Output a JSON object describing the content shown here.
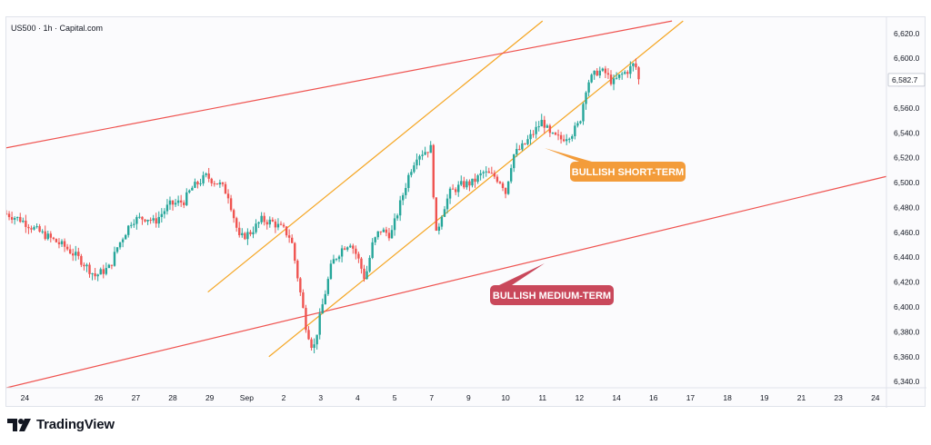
{
  "header": {
    "symbol": "US500 · 1h · Capital.com"
  },
  "brand": {
    "name": "TradingView",
    "logo_icon": "tradingview-logo-icon"
  },
  "colors": {
    "up": "#26a69a",
    "down": "#ef5350",
    "short_term_channel": "#f5a623",
    "medium_term_channel": "#ef5350",
    "short_term_callout": "#f39c3a",
    "medium_term_callout": "#c9485b"
  },
  "annotations": {
    "short_term": "BULLISH SHORT-TERM",
    "medium_term": "BULLISH MEDIUM-TERM"
  },
  "chart_data": {
    "type": "candlestick",
    "title": "US500 · 1h · Capital.com",
    "y_ticks": [
      6620,
      6600,
      6580,
      6560,
      6540,
      6520,
      6500,
      6480,
      6460,
      6440,
      6420,
      6400,
      6380,
      6360,
      6340
    ],
    "y_tick_labels": [
      "6,620.0",
      "6,600.0",
      "6,580.0",
      "6,560.0",
      "6,540.0",
      "6,520.0",
      "6,500.0",
      "6,480.0",
      "6,460.0",
      "6,440.0",
      "6,420.0",
      "6,400.0",
      "6,380.0",
      "6,360.0",
      "6,340.0"
    ],
    "ylim": [
      6335,
      6633
    ],
    "x_ticks": [
      "24",
      "26",
      "27",
      "28",
      "29",
      "Sep",
      "2",
      "3",
      "4",
      "5",
      "7",
      "9",
      "10",
      "11",
      "12",
      "14",
      "16",
      "17",
      "18",
      "19",
      "21",
      "23",
      "24"
    ],
    "x_tick_positions": [
      0.5,
      2.5,
      3.5,
      4.5,
      5.5,
      6.5,
      7.5,
      8.5,
      9.5,
      10.5,
      11.5,
      12.5,
      13.5,
      14.5,
      15.5,
      16.5,
      17.5,
      18.5,
      19.5,
      20.5,
      21.5,
      22.5,
      23.5
    ],
    "x_range": [
      0,
      23.8
    ],
    "last_price": 6582.7,
    "last_price_label": "6,582.7",
    "price_path": [
      [
        0.0,
        6475
      ],
      [
        0.4,
        6470
      ],
      [
        0.8,
        6462
      ],
      [
        1.2,
        6455
      ],
      [
        1.6,
        6448
      ],
      [
        2.0,
        6438
      ],
      [
        2.4,
        6425
      ],
      [
        2.8,
        6432
      ],
      [
        3.0,
        6448
      ],
      [
        3.4,
        6470
      ],
      [
        3.8,
        6472
      ],
      [
        4.0,
        6468
      ],
      [
        4.4,
        6482
      ],
      [
        4.8,
        6485
      ],
      [
        5.0,
        6495
      ],
      [
        5.4,
        6505
      ],
      [
        5.8,
        6498
      ],
      [
        6.0,
        6490
      ],
      [
        6.3,
        6455
      ],
      [
        6.6,
        6460
      ],
      [
        6.9,
        6470
      ],
      [
        7.2,
        6468
      ],
      [
        7.5,
        6462
      ],
      [
        7.7,
        6455
      ],
      [
        7.9,
        6420
      ],
      [
        8.1,
        6385
      ],
      [
        8.3,
        6365
      ],
      [
        8.5,
        6395
      ],
      [
        8.8,
        6435
      ],
      [
        9.1,
        6448
      ],
      [
        9.3,
        6452
      ],
      [
        9.5,
        6440
      ],
      [
        9.7,
        6422
      ],
      [
        9.9,
        6450
      ],
      [
        10.1,
        6462
      ],
      [
        10.4,
        6458
      ],
      [
        10.6,
        6478
      ],
      [
        10.9,
        6508
      ],
      [
        11.1,
        6522
      ],
      [
        11.3,
        6525
      ],
      [
        11.5,
        6528
      ],
      [
        11.6,
        6455
      ],
      [
        11.8,
        6478
      ],
      [
        12.0,
        6492
      ],
      [
        12.3,
        6498
      ],
      [
        12.6,
        6500
      ],
      [
        12.9,
        6508
      ],
      [
        13.2,
        6505
      ],
      [
        13.4,
        6500
      ],
      [
        13.5,
        6492
      ],
      [
        13.7,
        6522
      ],
      [
        14.0,
        6530
      ],
      [
        14.3,
        6542
      ],
      [
        14.5,
        6550
      ],
      [
        14.7,
        6538
      ],
      [
        15.0,
        6535
      ],
      [
        15.3,
        6540
      ],
      [
        15.5,
        6548
      ],
      [
        15.7,
        6580
      ],
      [
        16.0,
        6590
      ],
      [
        16.2,
        6588
      ],
      [
        16.4,
        6580
      ],
      [
        16.6,
        6586
      ],
      [
        16.8,
        6590
      ],
      [
        17.0,
        6596
      ],
      [
        17.1,
        6582.7
      ]
    ],
    "channels": [
      {
        "name": "short-term-upper",
        "style": "short_term",
        "from": [
          5.45,
          6412
        ],
        "to": [
          14.5,
          6630
        ]
      },
      {
        "name": "short-term-lower",
        "style": "short_term",
        "from": [
          7.1,
          6360
        ],
        "to": [
          18.3,
          6630
        ]
      },
      {
        "name": "medium-term-upper",
        "style": "medium_term",
        "from": [
          0.0,
          6528
        ],
        "to": [
          18.0,
          6630
        ]
      },
      {
        "name": "medium-term-lower",
        "style": "medium_term",
        "from": [
          0.0,
          6335
        ],
        "to": [
          23.8,
          6505
        ]
      }
    ]
  }
}
